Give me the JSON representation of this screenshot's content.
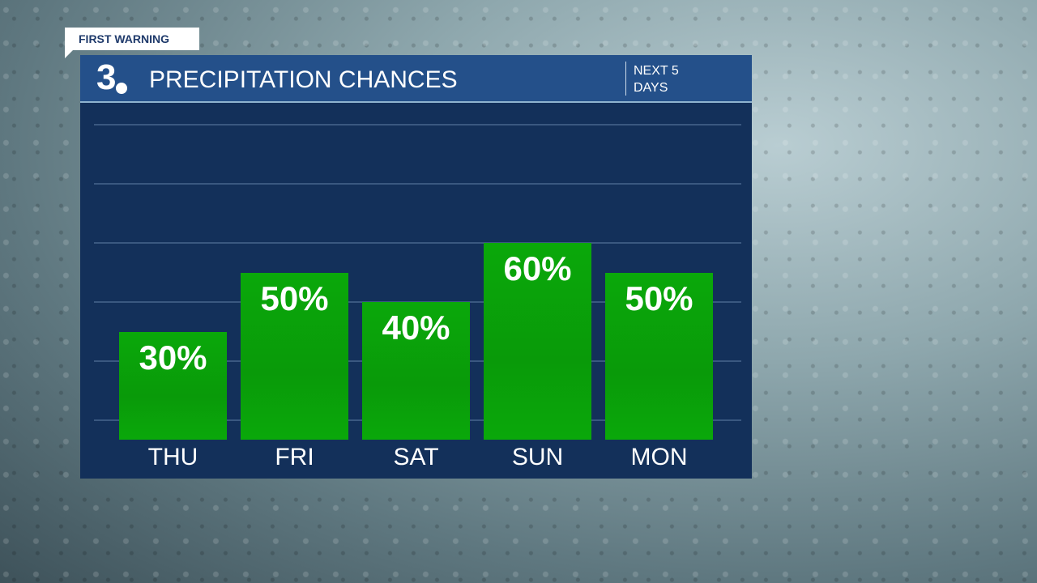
{
  "badge": "FIRST WARNING",
  "logo": "3",
  "header": {
    "title": "PRECIPITATION CHANCES",
    "subtitle": "NEXT 5 DAYS"
  },
  "colors": {
    "bar": "#0aa80a",
    "panel": "#13305a",
    "header": "#24508a"
  },
  "chart_data": {
    "type": "bar",
    "title": "PRECIPITATION CHANCES",
    "categories": [
      "THU",
      "FRI",
      "SAT",
      "SUN",
      "MON"
    ],
    "values": [
      30,
      50,
      40,
      60,
      50
    ],
    "labels": [
      "30%",
      "50%",
      "40%",
      "60%",
      "50%"
    ],
    "ylim": [
      0,
      100
    ],
    "grid": true,
    "unit": "%"
  }
}
